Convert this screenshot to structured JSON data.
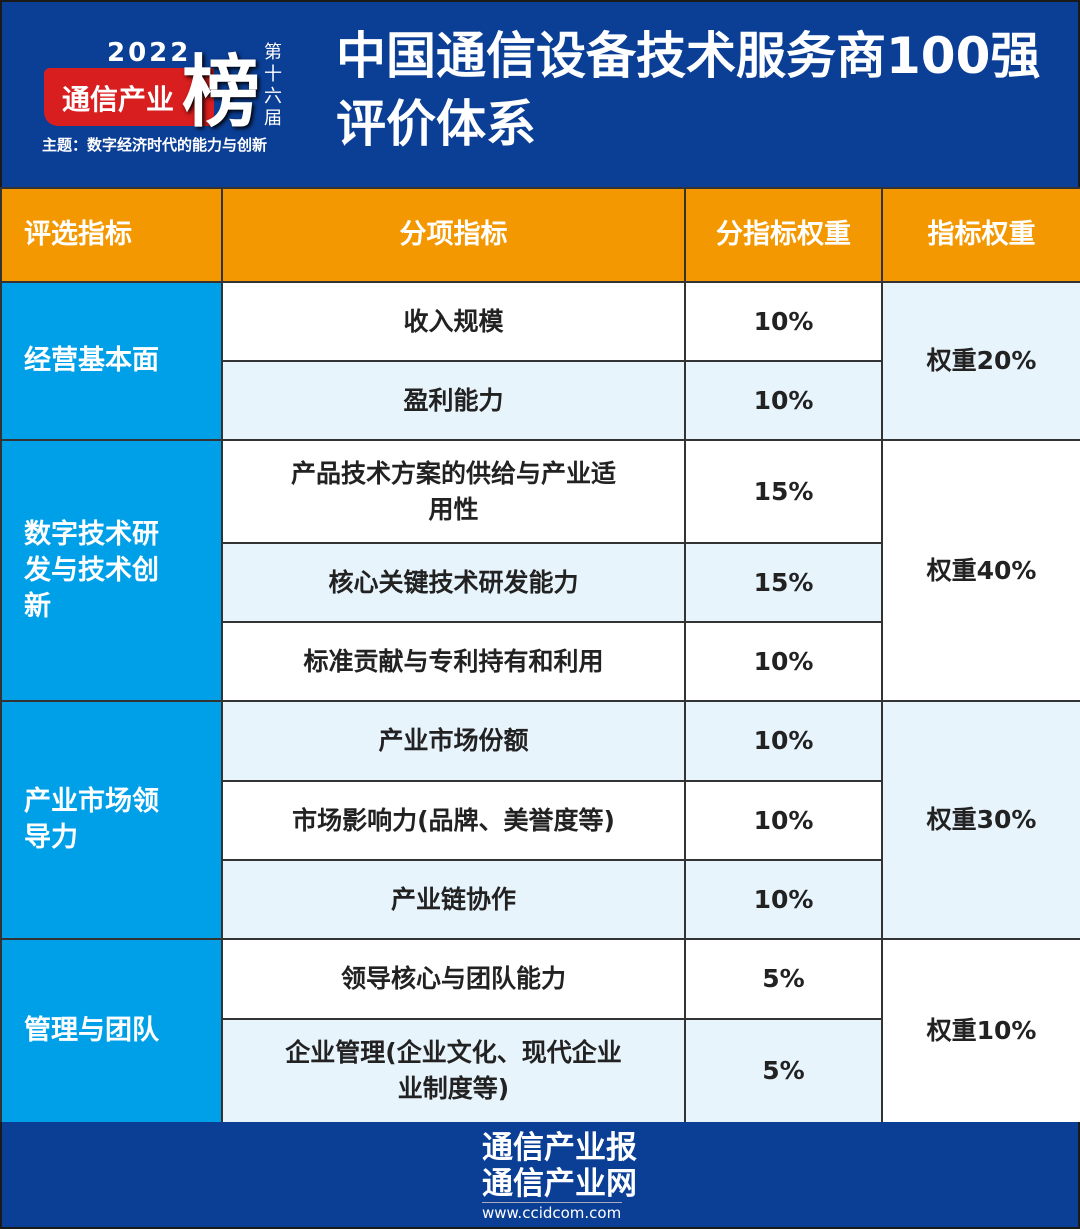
{
  "logo": {
    "year": "2022",
    "brand": "通信产业",
    "bang": "榜",
    "edition": "第十六届",
    "theme": "主题：数字经济时代的能力与创新"
  },
  "title_lines": [
    "中国通信设备技术服务商100强",
    "评价体系"
  ],
  "table": {
    "headers": [
      "评选指标",
      "分项指标",
      "分指标权重",
      "指标权重"
    ],
    "groups": [
      {
        "category": "经营基本面",
        "weight": "权重20%",
        "items": [
          {
            "name": "收入规模",
            "weight": "10%"
          },
          {
            "name": "盈利能力",
            "weight": "10%"
          }
        ]
      },
      {
        "category": "数字技术研发与技术创新",
        "weight": "权重40%",
        "items": [
          {
            "name": "产品技术方案的供给与产业适用性",
            "weight": "15%"
          },
          {
            "name": "核心关键技术研发能力",
            "weight": "15%"
          },
          {
            "name": "标准贡献与专利持有和利用",
            "weight": "10%"
          }
        ]
      },
      {
        "category": "产业市场领导力",
        "weight": "权重30%",
        "items": [
          {
            "name": "产业市场份额",
            "weight": "10%"
          },
          {
            "name": "市场影响力(品牌、美誉度等)",
            "weight": "10%"
          },
          {
            "name": "产业链协作",
            "weight": "10%"
          }
        ]
      },
      {
        "category": "管理与团队",
        "weight": "权重10%",
        "items": [
          {
            "name": "领导核心与团队能力",
            "weight": "5%"
          },
          {
            "name": "企业管理(企业文化、现代企业业制度等)",
            "weight": "5%"
          }
        ]
      }
    ]
  },
  "footer": {
    "line1": "通信产业报",
    "line2": "通信产业网",
    "url": "www.ccidcom.com"
  },
  "colors": {
    "background": "#0b3f96",
    "header_orange": "#f39800",
    "category_blue": "#00a0e9",
    "row_light": "#e8f4fc",
    "brand_red": "#d81e1e"
  }
}
